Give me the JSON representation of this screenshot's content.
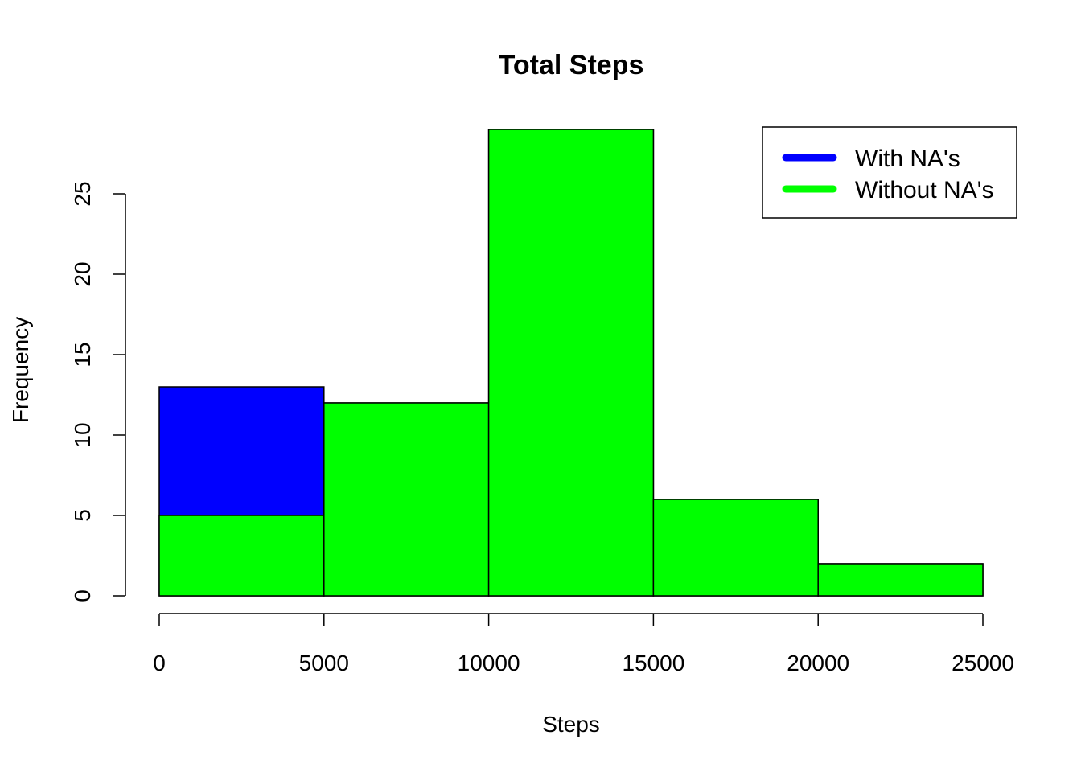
{
  "chart_data": {
    "type": "bar",
    "title": "Total Steps",
    "xlabel": "Steps",
    "ylabel": "Frequency",
    "bins": [
      [
        0,
        5000
      ],
      [
        5000,
        10000
      ],
      [
        10000,
        15000
      ],
      [
        15000,
        20000
      ],
      [
        20000,
        25000
      ]
    ],
    "series": [
      {
        "name": "With NA's",
        "color": "#0000ff",
        "values": [
          13,
          12,
          29,
          6,
          2
        ]
      },
      {
        "name": "Without NA's",
        "color": "#00ff00",
        "values": [
          5,
          12,
          29,
          6,
          2
        ]
      }
    ],
    "xlim": [
      0,
      25000
    ],
    "ylim": [
      0,
      29
    ],
    "x_ticks": [
      "0",
      "5000",
      "10000",
      "15000",
      "20000",
      "25000"
    ],
    "y_ticks": [
      "0",
      "5",
      "10",
      "15",
      "20",
      "25"
    ],
    "grid": false,
    "legend_position": "top-right"
  }
}
